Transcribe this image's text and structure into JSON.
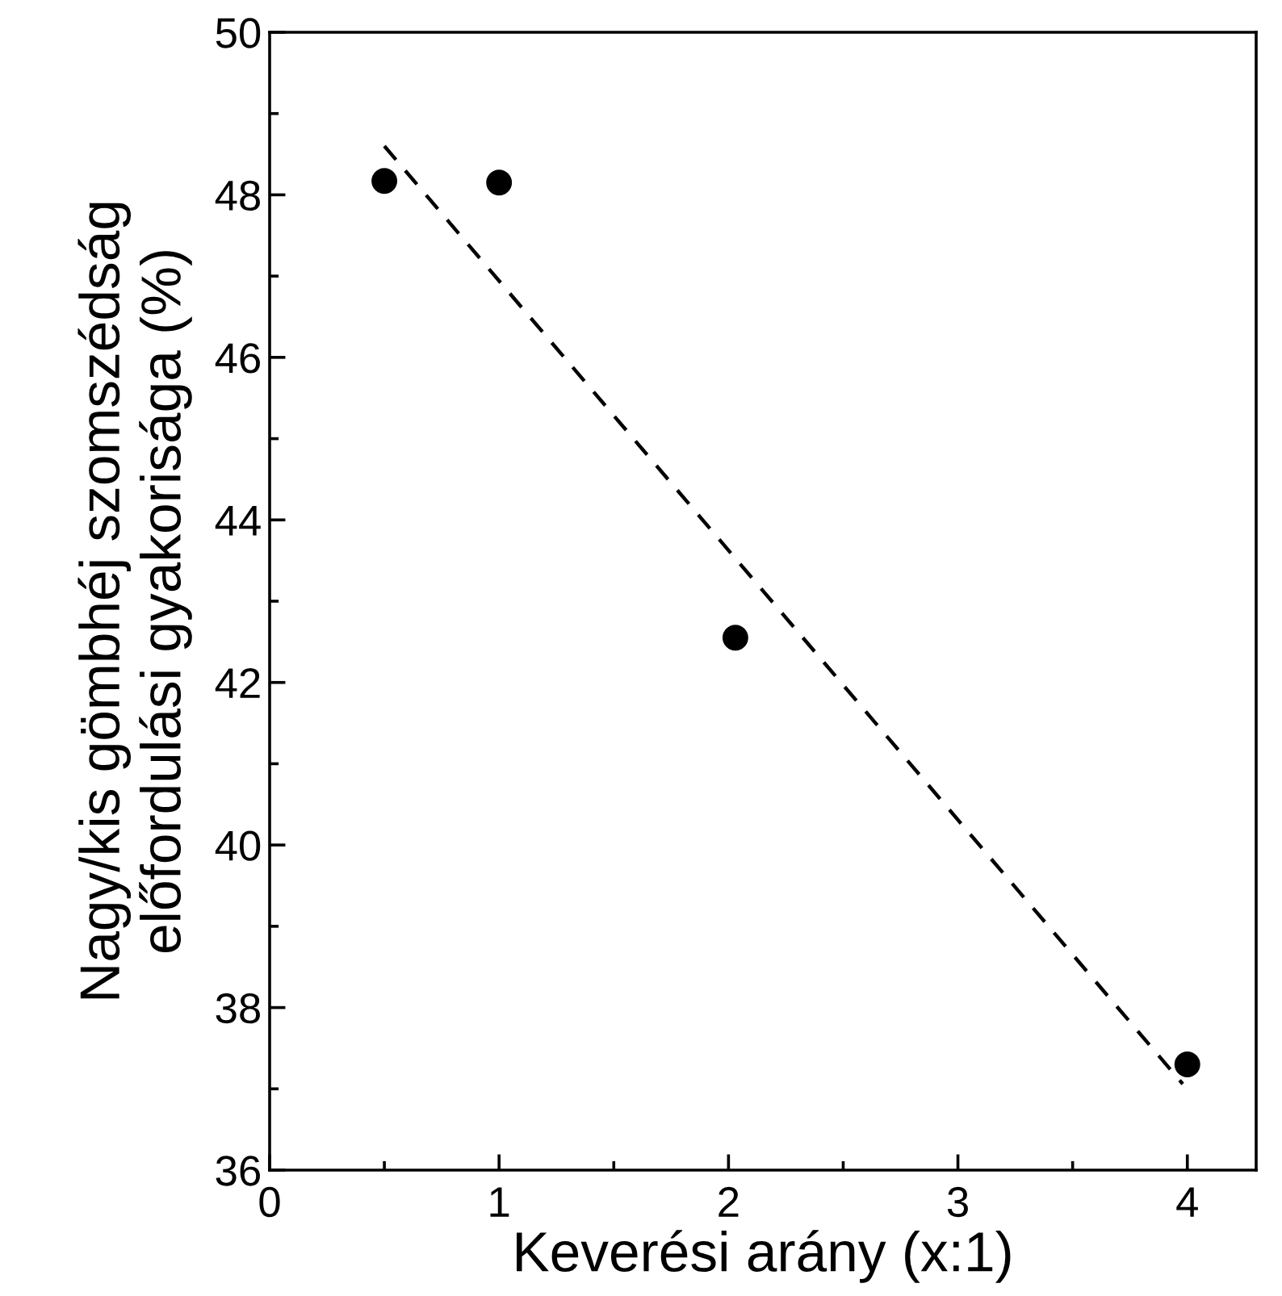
{
  "chart_data": {
    "type": "scatter",
    "xlabel": "Keverési arány (x:1)",
    "ylabel": "Nagy/kis gömbhéj szomszédság\nelőfordulási gyakorisága (%)",
    "xlim": [
      0,
      4.3
    ],
    "ylim": [
      36,
      50
    ],
    "xticks": [
      0,
      1,
      2,
      3,
      4
    ],
    "yticks": [
      36,
      38,
      40,
      42,
      44,
      46,
      48,
      50
    ],
    "grid": false,
    "legend": false,
    "series": [
      {
        "color": "#000000",
        "marker": "circle",
        "x": [
          0.5,
          1.0,
          2.03,
          4.0
        ],
        "values": [
          48.17,
          48.15,
          42.55,
          37.3
        ]
      },
      {
        "type": "line",
        "color": "#000000",
        "line_style": "dashed",
        "marker": "none",
        "x": [
          0.5,
          3.98
        ],
        "values": [
          48.6,
          37.06
        ]
      }
    ]
  }
}
